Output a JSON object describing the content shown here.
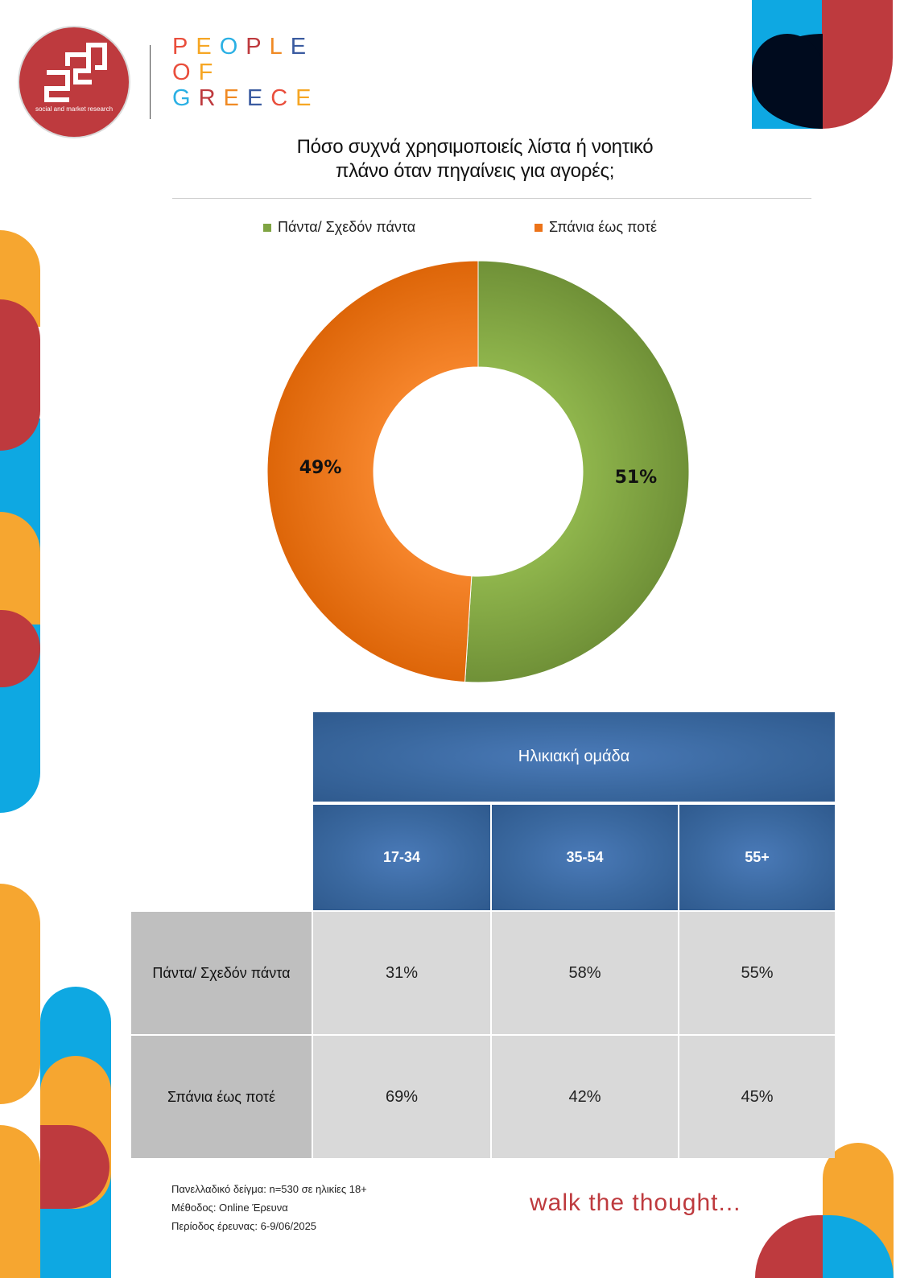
{
  "brand": {
    "logo_caption": "social and market research",
    "people_of_greece_lines": [
      "PEOPLE",
      "OF",
      "GREECE"
    ],
    "letter_colors": [
      "#e94e3c",
      "#f6a623",
      "#2ab0e4",
      "#be3a3e",
      "#f08a24",
      "#3a5ba0"
    ],
    "tagline": "walk the thought..."
  },
  "palette": {
    "orange": "#f6a630",
    "red": "#be3a3e",
    "blue": "#0ea8e2",
    "navy": "#000b1e",
    "green": "#7fa443",
    "slice_orange": "#ec7319"
  },
  "chart_data": {
    "type": "pie",
    "title": "Πόσο συχνά χρησιμοποιείς λίστα ή νοητικό πλάνο όταν πηγαίνεις για αγορές;",
    "legend_position": "top",
    "donut": true,
    "categories": [
      "Πάντα/ Σχεδόν πάντα",
      "Σπάνια έως ποτέ"
    ],
    "values": [
      51,
      49
    ],
    "labels": [
      "51%",
      "49%"
    ],
    "colors": [
      "#7fa443",
      "#ec7319"
    ]
  },
  "table": {
    "group_header": "Ηλικιακή ομάδα",
    "columns": [
      "17-34",
      "35-54",
      "55+"
    ],
    "rows": [
      {
        "label": "Πάντα/ Σχεδόν πάντα",
        "values": [
          "31%",
          "58%",
          "55%"
        ]
      },
      {
        "label": "Σπάνια έως ποτέ",
        "values": [
          "69%",
          "42%",
          "45%"
        ]
      }
    ]
  },
  "footer": {
    "sample": "Πανελλαδικό δείγμα: n=530 σε ηλικίες 18+",
    "method": "Μέθοδος: Online Έρευνα",
    "period": "Περίοδος έρευνας:  6-9/06/2025"
  }
}
